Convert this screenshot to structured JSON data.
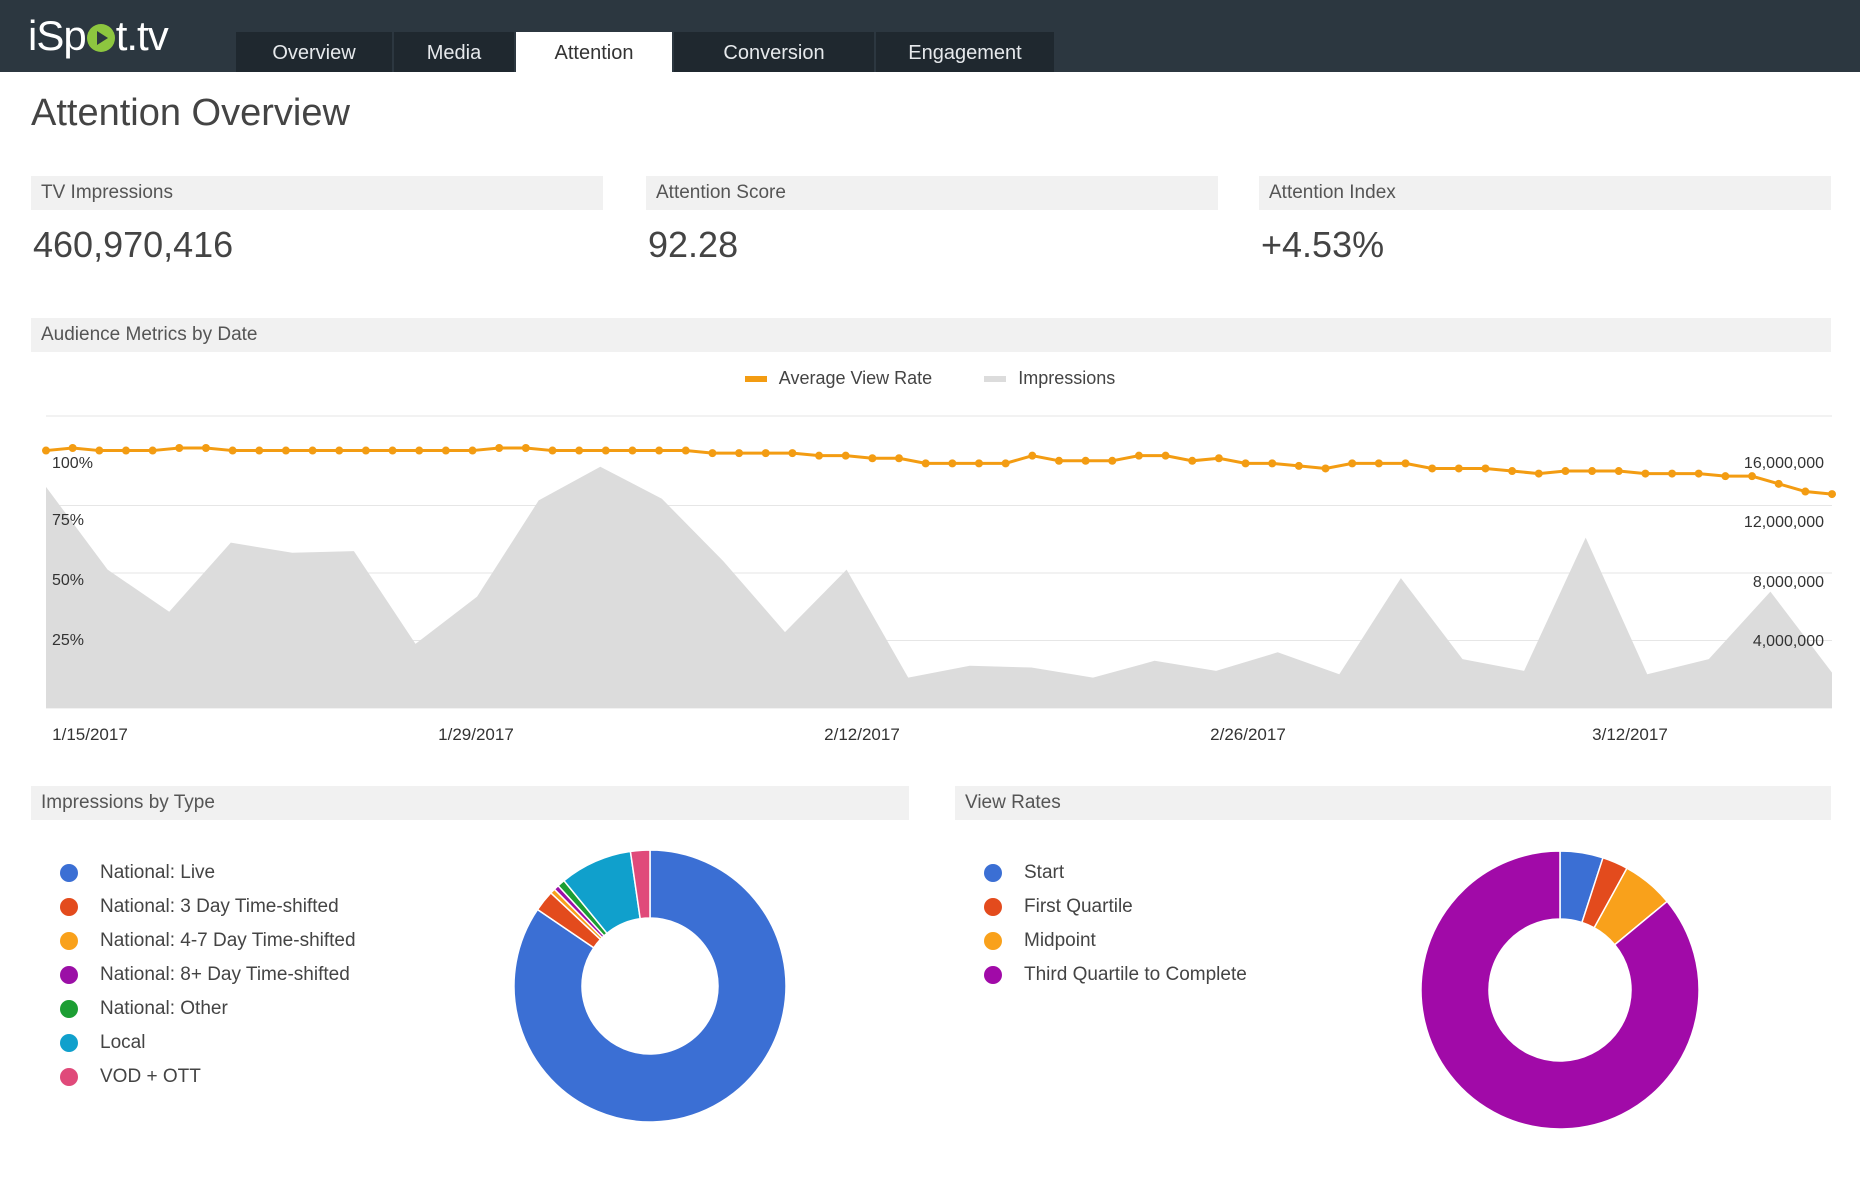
{
  "app": {
    "logo_pre": "iSp",
    "logo_post": "t.tv",
    "logo_icon": "play-circle-icon"
  },
  "tabs": [
    {
      "label": "Overview"
    },
    {
      "label": "Media"
    },
    {
      "label": "Attention",
      "active": true
    },
    {
      "label": "Conversion"
    },
    {
      "label": "Engagement"
    }
  ],
  "page_title": "Attention Overview",
  "kpis": [
    {
      "label": "TV Impressions",
      "value": "460,970,416"
    },
    {
      "label": "Attention Score",
      "value": "92.28"
    },
    {
      "label": "Attention Index",
      "value": "+4.53%"
    }
  ],
  "audience_section": {
    "title": "Audience Metrics by Date"
  },
  "impressions_section": {
    "title": "Impressions by Type"
  },
  "viewrates_section": {
    "title": "View Rates"
  },
  "colors": {
    "avg_view_rate": "#f39c12",
    "impressions_area": "#dcdcdc",
    "grid": "#e6e6e6"
  },
  "chart_data": [
    {
      "type": "line",
      "title": "Audience Metrics by Date",
      "x_ticks": [
        "1/15/2017",
        "1/29/2017",
        "2/12/2017",
        "2/26/2017",
        "3/12/2017"
      ],
      "x_start": "1/14/2017",
      "x_end": "3/20/2017",
      "y_left_ticks": [
        "25%",
        "50%",
        "75%",
        "100%"
      ],
      "y_left_range": [
        0,
        100
      ],
      "y_right_ticks": [
        "4,000,000",
        "8,000,000",
        "12,000,000",
        "16,000,000"
      ],
      "y_right_range": [
        0,
        16000000
      ],
      "legend_position": "top",
      "grid": true,
      "series": [
        {
          "name": "Average View Rate",
          "axis": "left",
          "style": "line",
          "values": [
            99,
            100,
            99,
            99,
            99,
            100,
            100,
            99,
            99,
            99,
            99,
            99,
            99,
            99,
            99,
            99,
            99,
            100,
            100,
            99,
            99,
            99,
            99,
            99,
            99,
            98,
            98,
            98,
            98,
            97,
            97,
            96,
            96,
            94,
            94,
            94,
            94,
            97,
            95,
            95,
            95,
            97,
            97,
            95,
            96,
            94,
            94,
            93,
            92,
            94,
            94,
            94,
            92,
            92,
            92,
            91,
            90,
            91,
            91,
            91,
            90,
            90,
            90,
            89,
            89,
            86,
            83,
            82
          ]
        },
        {
          "name": "Impressions",
          "axis": "right",
          "style": "area",
          "values": [
            13100000,
            8200000,
            5700000,
            9800000,
            9200000,
            9300000,
            3800000,
            6600000,
            12300000,
            14300000,
            12400000,
            8700000,
            4500000,
            8200000,
            1800000,
            2500000,
            2400000,
            1800000,
            2800000,
            2200000,
            3300000,
            2000000,
            7700000,
            2900000,
            2200000,
            10100000,
            2000000,
            2900000,
            6900000,
            2100000
          ]
        }
      ]
    },
    {
      "type": "pie",
      "title": "Impressions by Type",
      "donut": true,
      "categories": [
        "National: Live",
        "National: 3 Day Time-shifted",
        "National: 4-7 Day Time-shifted",
        "National: 8+ Day Time-shifted",
        "National: Other",
        "Local",
        "VOD + OTT"
      ],
      "values": [
        84.5,
        2.5,
        0.6,
        0.6,
        0.9,
        8.6,
        2.3
      ],
      "colors": [
        "#3b6fd4",
        "#e34b1d",
        "#f9a11b",
        "#9b0fa6",
        "#1c9e33",
        "#10a0cc",
        "#e04a7a"
      ],
      "legend_position": "left"
    },
    {
      "type": "pie",
      "title": "View Rates",
      "donut": true,
      "categories": [
        "Start",
        "First Quartile",
        "Midpoint",
        "Third Quartile to Complete"
      ],
      "values": [
        5,
        3,
        6,
        86
      ],
      "colors": [
        "#3b6fd4",
        "#e34b1d",
        "#f9a11b",
        "#a10aa8"
      ],
      "legend_position": "left"
    }
  ]
}
